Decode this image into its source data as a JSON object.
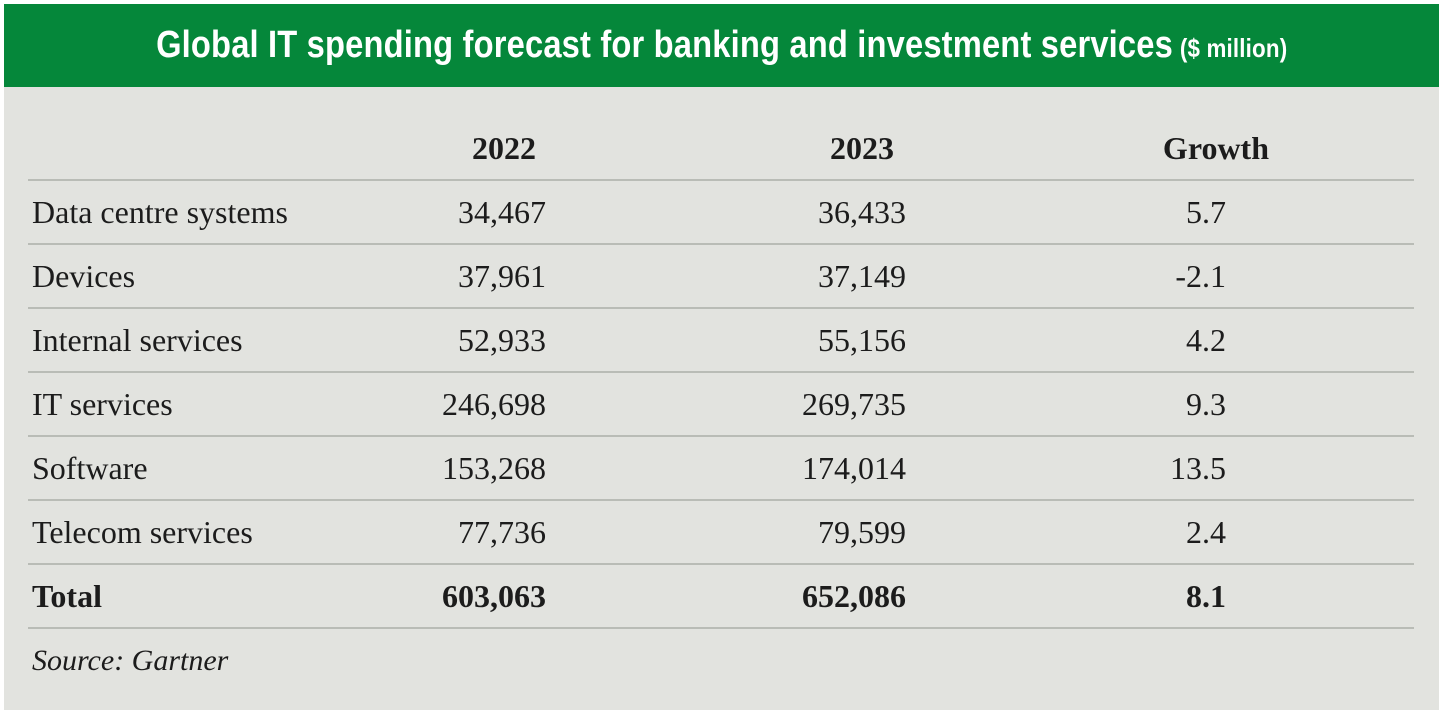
{
  "header": {
    "title": "Global IT spending forecast for banking and investment services",
    "unit": "($ million)"
  },
  "table": {
    "columns": [
      "2022",
      "2023",
      "Growth"
    ],
    "rows": [
      {
        "label": "Data centre systems",
        "y2022": "34,467",
        "y2023": "36,433",
        "growth": "5.7"
      },
      {
        "label": "Devices",
        "y2022": "37,961",
        "y2023": "37,149",
        "growth": "-2.1"
      },
      {
        "label": "Internal services",
        "y2022": "52,933",
        "y2023": "55,156",
        "growth": "4.2"
      },
      {
        "label": "IT services",
        "y2022": "246,698",
        "y2023": "269,735",
        "growth": "9.3"
      },
      {
        "label": "Software",
        "y2022": "153,268",
        "y2023": "174,014",
        "growth": "13.5"
      },
      {
        "label": "Telecom services",
        "y2022": "77,736",
        "y2023": "79,599",
        "growth": "2.4"
      }
    ],
    "total": {
      "label": "Total",
      "y2022": "603,063",
      "y2023": "652,086",
      "growth": "8.1"
    }
  },
  "source": "Source: Gartner",
  "colors": {
    "header_bg": "#05873a",
    "panel_bg": "#e2e3df",
    "rule": "#b9bcb6"
  }
}
